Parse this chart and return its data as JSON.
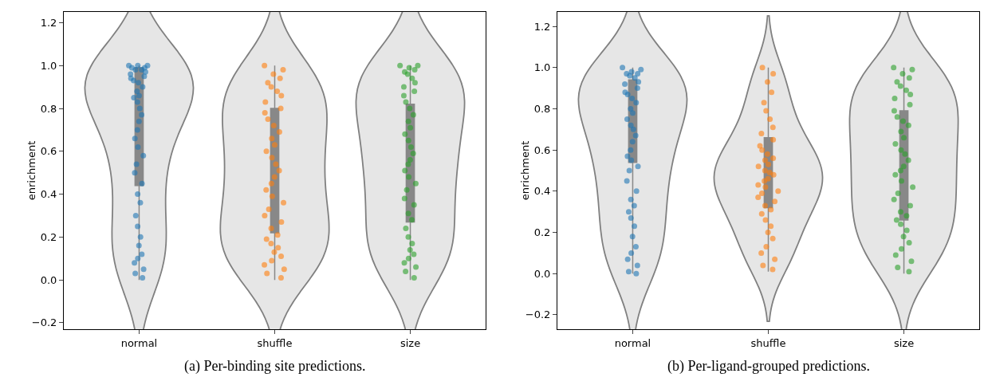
{
  "chart_data": [
    {
      "type": "box",
      "ylabel": "enrichment",
      "categories": [
        "normal",
        "shuffle",
        "size"
      ],
      "ylim": [
        -0.23,
        1.25
      ],
      "yticks": [
        {
          "value": -0.2,
          "label": "−0.2"
        },
        {
          "value": 0,
          "label": "0.0"
        },
        {
          "value": 0.2,
          "label": "0.2"
        },
        {
          "value": 0.4,
          "label": "0.4"
        },
        {
          "value": 0.6,
          "label": "0.6"
        },
        {
          "value": 0.8,
          "label": "0.8"
        },
        {
          "value": 1,
          "label": "1.0"
        },
        {
          "value": 1.2,
          "label": "1.2"
        }
      ],
      "grid": false,
      "annotations": [
        "(a) Per-binding site predictions."
      ],
      "boxes": [
        {
          "low": 0,
          "q1": 0.44,
          "median": 0.85,
          "q3": 0.99,
          "high": 1
        },
        {
          "low": 0,
          "q1": 0.22,
          "median": 0.51,
          "q3": 0.8,
          "high": 1
        },
        {
          "low": 0,
          "q1": 0.27,
          "median": 0.55,
          "q3": 0.82,
          "high": 1
        }
      ],
      "series": [
        {
          "type": "scatter",
          "color": "#1f77b4",
          "x": [
            "normal",
            "normal",
            "normal",
            "normal",
            "normal",
            "normal",
            "normal",
            "normal",
            "normal",
            "normal",
            "normal",
            "normal",
            "normal",
            "normal",
            "normal",
            "normal",
            "normal",
            "normal",
            "normal",
            "normal",
            "normal",
            "normal",
            "normal",
            "normal",
            "normal",
            "normal",
            "normal",
            "normal",
            "normal",
            "normal",
            "normal",
            "normal",
            "normal",
            "normal",
            "normal",
            "normal",
            "normal",
            "normal",
            "normal",
            "normal"
          ],
          "values": [
            1,
            1,
            1,
            0.99,
            0.99,
            0.98,
            0.98,
            0.97,
            0.96,
            0.95,
            0.94,
            0.93,
            0.92,
            0.9,
            0.88,
            0.86,
            0.85,
            0.83,
            0.8,
            0.77,
            0.74,
            0.7,
            0.66,
            0.62,
            0.58,
            0.54,
            0.5,
            0.45,
            0.4,
            0.36,
            0.3,
            0.25,
            0.2,
            0.16,
            0.12,
            0.1,
            0.08,
            0.05,
            0.03,
            0.01
          ]
        },
        {
          "type": "scatter",
          "color": "#ff7f0e",
          "x": [
            "shuffle",
            "shuffle",
            "shuffle",
            "shuffle",
            "shuffle",
            "shuffle",
            "shuffle",
            "shuffle",
            "shuffle",
            "shuffle",
            "shuffle",
            "shuffle",
            "shuffle",
            "shuffle",
            "shuffle",
            "shuffle",
            "shuffle",
            "shuffle",
            "shuffle",
            "shuffle",
            "shuffle",
            "shuffle",
            "shuffle",
            "shuffle",
            "shuffle",
            "shuffle",
            "shuffle",
            "shuffle",
            "shuffle",
            "shuffle",
            "shuffle",
            "shuffle",
            "shuffle",
            "shuffle",
            "shuffle",
            "shuffle",
            "shuffle",
            "shuffle",
            "shuffle",
            "shuffle"
          ],
          "values": [
            0.01,
            0.03,
            0.05,
            0.07,
            0.09,
            0.11,
            0.13,
            0.15,
            0.17,
            0.19,
            0.21,
            0.24,
            0.27,
            0.3,
            0.33,
            0.36,
            0.39,
            0.42,
            0.45,
            0.48,
            0.51,
            0.54,
            0.57,
            0.6,
            0.63,
            0.66,
            0.69,
            0.72,
            0.75,
            0.78,
            0.8,
            0.83,
            0.86,
            0.88,
            0.9,
            0.92,
            0.94,
            0.96,
            0.98,
            1
          ]
        },
        {
          "type": "scatter",
          "color": "#2ca02c",
          "x": [
            "size",
            "size",
            "size",
            "size",
            "size",
            "size",
            "size",
            "size",
            "size",
            "size",
            "size",
            "size",
            "size",
            "size",
            "size",
            "size",
            "size",
            "size",
            "size",
            "size",
            "size",
            "size",
            "size",
            "size",
            "size",
            "size",
            "size",
            "size",
            "size",
            "size",
            "size",
            "size",
            "size",
            "size",
            "size",
            "size",
            "size",
            "size",
            "size",
            "size"
          ],
          "values": [
            0.01,
            0.04,
            0.06,
            0.08,
            0.1,
            0.12,
            0.14,
            0.17,
            0.2,
            0.24,
            0.28,
            0.31,
            0.35,
            0.38,
            0.42,
            0.45,
            0.48,
            0.51,
            0.54,
            0.56,
            0.59,
            0.62,
            0.65,
            0.68,
            0.71,
            0.74,
            0.77,
            0.8,
            0.83,
            0.86,
            0.88,
            0.9,
            0.92,
            0.94,
            0.96,
            0.97,
            0.98,
            0.99,
            1,
            1
          ]
        }
      ]
    },
    {
      "type": "box",
      "ylabel": "enrichment",
      "categories": [
        "normal",
        "shuffle",
        "size"
      ],
      "ylim": [
        -0.27,
        1.27
      ],
      "yticks": [
        {
          "value": -0.2,
          "label": "−0.2"
        },
        {
          "value": 0,
          "label": "0.0"
        },
        {
          "value": 0.2,
          "label": "0.2"
        },
        {
          "value": 0.4,
          "label": "0.4"
        },
        {
          "value": 0.6,
          "label": "0.6"
        },
        {
          "value": 0.8,
          "label": "0.8"
        },
        {
          "value": 1,
          "label": "1.0"
        },
        {
          "value": 1.2,
          "label": "1.2"
        }
      ],
      "grid": false,
      "annotations": [
        "(b) Per-ligand-grouped predictions."
      ],
      "boxes": [
        {
          "low": 0,
          "q1": 0.54,
          "median": 0.8,
          "q3": 0.94,
          "high": 1
        },
        {
          "low": 0.01,
          "q1": 0.32,
          "median": 0.48,
          "q3": 0.66,
          "high": 1
        },
        {
          "low": 0,
          "q1": 0.26,
          "median": 0.52,
          "q3": 0.79,
          "high": 1
        }
      ],
      "series": [
        {
          "type": "scatter",
          "color": "#1f77b4",
          "x": [
            "normal",
            "normal",
            "normal",
            "normal",
            "normal",
            "normal",
            "normal",
            "normal",
            "normal",
            "normal",
            "normal",
            "normal",
            "normal",
            "normal",
            "normal",
            "normal",
            "normal",
            "normal",
            "normal",
            "normal",
            "normal",
            "normal",
            "normal",
            "normal",
            "normal",
            "normal",
            "normal",
            "normal",
            "normal",
            "normal",
            "normal",
            "normal",
            "normal",
            "normal",
            "normal",
            "normal",
            "normal",
            "normal",
            "normal",
            "normal"
          ],
          "values": [
            1,
            0.99,
            0.98,
            0.97,
            0.97,
            0.96,
            0.95,
            0.93,
            0.92,
            0.9,
            0.88,
            0.87,
            0.85,
            0.83,
            0.8,
            0.78,
            0.75,
            0.72,
            0.7,
            0.67,
            0.64,
            0.6,
            0.57,
            0.55,
            0.52,
            0.5,
            0.45,
            0.4,
            0.36,
            0.33,
            0.3,
            0.27,
            0.23,
            0.18,
            0.13,
            0.1,
            0.07,
            0.04,
            0.01,
            0
          ]
        },
        {
          "type": "scatter",
          "color": "#ff7f0e",
          "x": [
            "shuffle",
            "shuffle",
            "shuffle",
            "shuffle",
            "shuffle",
            "shuffle",
            "shuffle",
            "shuffle",
            "shuffle",
            "shuffle",
            "shuffle",
            "shuffle",
            "shuffle",
            "shuffle",
            "shuffle",
            "shuffle",
            "shuffle",
            "shuffle",
            "shuffle",
            "shuffle",
            "shuffle",
            "shuffle",
            "shuffle",
            "shuffle",
            "shuffle",
            "shuffle",
            "shuffle",
            "shuffle",
            "shuffle",
            "shuffle",
            "shuffle",
            "shuffle",
            "shuffle",
            "shuffle",
            "shuffle",
            "shuffle",
            "shuffle",
            "shuffle",
            "shuffle",
            "shuffle"
          ],
          "values": [
            0.02,
            0.04,
            0.07,
            0.1,
            0.13,
            0.17,
            0.2,
            0.23,
            0.26,
            0.29,
            0.31,
            0.33,
            0.35,
            0.37,
            0.39,
            0.4,
            0.42,
            0.43,
            0.45,
            0.46,
            0.48,
            0.49,
            0.5,
            0.52,
            0.53,
            0.55,
            0.56,
            0.58,
            0.6,
            0.62,
            0.65,
            0.68,
            0.71,
            0.75,
            0.79,
            0.83,
            0.88,
            0.93,
            0.97,
            1
          ]
        },
        {
          "type": "scatter",
          "color": "#2ca02c",
          "x": [
            "size",
            "size",
            "size",
            "size",
            "size",
            "size",
            "size",
            "size",
            "size",
            "size",
            "size",
            "size",
            "size",
            "size",
            "size",
            "size",
            "size",
            "size",
            "size",
            "size",
            "size",
            "size",
            "size",
            "size",
            "size",
            "size",
            "size",
            "size",
            "size",
            "size",
            "size",
            "size",
            "size",
            "size",
            "size",
            "size",
            "size",
            "size",
            "size",
            "size"
          ],
          "values": [
            0.01,
            0.03,
            0.06,
            0.09,
            0.12,
            0.15,
            0.18,
            0.21,
            0.24,
            0.26,
            0.28,
            0.3,
            0.33,
            0.36,
            0.39,
            0.42,
            0.45,
            0.48,
            0.5,
            0.52,
            0.55,
            0.58,
            0.6,
            0.63,
            0.66,
            0.69,
            0.72,
            0.74,
            0.76,
            0.79,
            0.82,
            0.85,
            0.87,
            0.89,
            0.91,
            0.93,
            0.95,
            0.97,
            0.99,
            1
          ]
        }
      ]
    }
  ]
}
